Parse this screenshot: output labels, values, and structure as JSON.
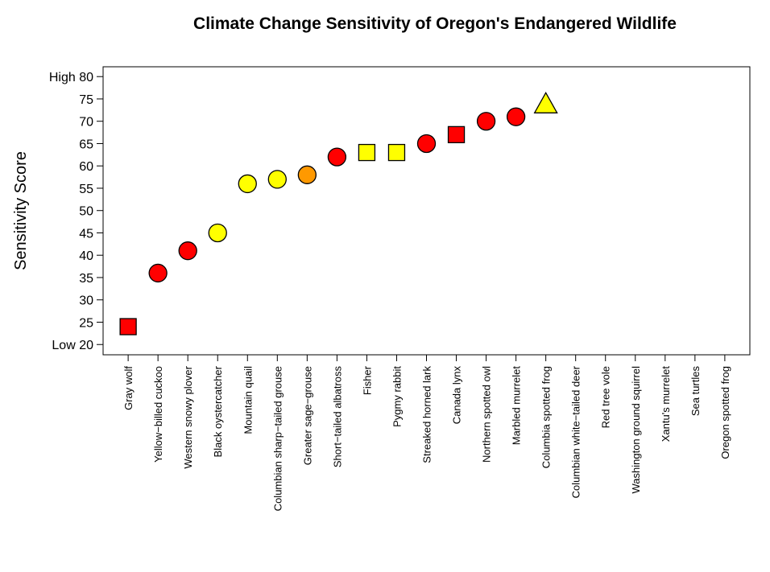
{
  "chart_data": {
    "type": "scatter",
    "title": "Climate Change Sensitivity of Oregon's Endangered Wildlife",
    "y_label": "Sensitivity Score",
    "categories": [
      "Gray wolf",
      "Yellow−billed cuckoo",
      "Western snowy plover",
      "Black oystercatcher",
      "Mountain quail",
      "Columbian sharp−tailed grouse",
      "Greater sage−grouse",
      "Short−tailed albatross",
      "Fisher",
      "Pygmy rabbit",
      "Streaked horned lark",
      "Canada lynx",
      "Northern spotted owl",
      "Marbled murrelet",
      "Columbia spotted frog",
      "Columbian white−tailed deer",
      "Red tree vole",
      "Washington ground squirrel",
      "Xantu's murrelet",
      "Sea turtles",
      "Oregon spotted frog"
    ],
    "values": [
      24,
      36,
      41,
      45,
      56,
      57,
      58,
      62,
      63,
      63,
      65,
      67,
      70,
      71,
      73.5,
      null,
      null,
      null,
      null,
      null,
      null
    ],
    "colors": [
      "#ff0000",
      "#ff0000",
      "#ff0000",
      "#ffff00",
      "#ffff00",
      "#ffff00",
      "#ff9900",
      "#ff0000",
      "#ffff00",
      "#ffff00",
      "#ff0000",
      "#ff0000",
      "#ff0000",
      "#ff0000",
      "#ffff00",
      null,
      null,
      null,
      null,
      null,
      null
    ],
    "shapes": [
      "square",
      "circle",
      "circle",
      "circle",
      "circle",
      "circle",
      "circle",
      "circle",
      "square",
      "square",
      "circle",
      "square",
      "circle",
      "circle",
      "triangle",
      null,
      null,
      null,
      null,
      null,
      null
    ],
    "ylim": [
      17.7,
      82.2
    ],
    "yticks": [
      {
        "value": 20,
        "label": "Low 20"
      },
      25,
      30,
      35,
      40,
      45,
      50,
      55,
      60,
      65,
      70,
      75,
      {
        "value": 80,
        "label": "High 80"
      }
    ]
  }
}
